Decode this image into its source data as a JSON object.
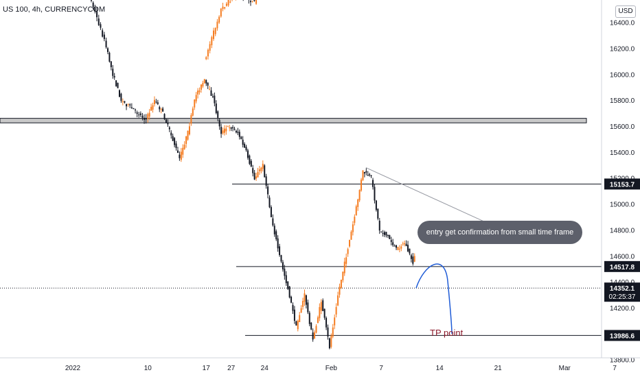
{
  "header": {
    "symbol": "US 100, 4h, CURRENCYCOM",
    "currency": "USD"
  },
  "chart_data": {
    "type": "candlestick",
    "title": "US 100, 4h, CURRENCYCOM",
    "currency": "USD",
    "ylim": [
      13700,
      16700
    ],
    "y_ticks": [
      "16400.0",
      "16200.0",
      "16000.0",
      "15800.0",
      "15600.0",
      "15400.0",
      "15200.0",
      "15000.0",
      "14800.0",
      "14600.0",
      "14400.0",
      "14200.0",
      "13800.0"
    ],
    "x_ticks": [
      "27",
      "2022",
      "10",
      "17",
      "24",
      "Feb",
      "7",
      "14",
      "21",
      "Mar",
      "7"
    ],
    "series": [
      {
        "name": "price",
        "points": [
          [
            "Dec 24",
            16100
          ],
          [
            "Dec 26",
            16500
          ],
          [
            "Dec 28",
            16630
          ],
          [
            "Dec 30",
            16550
          ],
          [
            "Jan 1",
            16700
          ],
          [
            "Jan 3",
            16650
          ],
          [
            "Jan 5",
            16260
          ],
          [
            "Jan 6",
            16000
          ],
          [
            "Jan 7",
            15800
          ],
          [
            "Jan 10",
            15650
          ],
          [
            "Jan 11",
            15800
          ],
          [
            "Jan 12",
            15700
          ],
          [
            "Jan 13",
            15530
          ],
          [
            "Jan 14",
            15350
          ],
          [
            "Jan 15",
            15550
          ],
          [
            "Jan 16",
            15850
          ],
          [
            "Jan 17",
            15950
          ],
          [
            "Jan 18",
            15820
          ],
          [
            "Jan 19",
            15550
          ],
          [
            "Jan 20",
            15600
          ],
          [
            "Jan 21",
            15550
          ],
          [
            "Jan 22",
            15400
          ],
          [
            "Jan 23",
            15200
          ],
          [
            "Jan 24",
            15300
          ],
          [
            "Jan 25",
            14900
          ],
          [
            "Jan 26",
            14600
          ],
          [
            "Jan 27",
            14350
          ],
          [
            "Jan 28",
            14050
          ],
          [
            "Jan 29",
            14300
          ],
          [
            "Jan 30",
            13950
          ],
          [
            "Jan 31",
            14250
          ],
          [
            "Feb 1",
            13900
          ],
          [
            "Feb 2",
            14300
          ],
          [
            "Feb 3",
            14600
          ],
          [
            "Feb 4",
            14900
          ],
          [
            "Feb 5",
            15250
          ],
          [
            "Feb 6",
            15200
          ],
          [
            "Feb 7",
            14800
          ],
          [
            "Feb 8",
            14750
          ],
          [
            "Feb 9",
            14650
          ],
          [
            "Feb 10",
            14700
          ],
          [
            "Feb 11",
            14550
          ],
          [
            "Feb 12",
            14750
          ],
          [
            "Feb 13",
            15050
          ],
          [
            "Feb 14",
            14700
          ],
          [
            "Feb 15",
            14350
          ]
        ]
      }
    ],
    "price_labels": [
      {
        "label": "15153.7",
        "value": 15153.7,
        "style": "black"
      },
      {
        "label": "14517.8",
        "value": 14517.8,
        "style": "black"
      },
      {
        "label": "14352.1",
        "value": 14352.1,
        "style": "black",
        "countdown": "02:25:37"
      },
      {
        "label": "13986.6",
        "value": 13986.6,
        "style": "black"
      }
    ],
    "zone": {
      "from": 15625,
      "to": 15660
    },
    "trendline": {
      "from": 15280,
      "to": 14780
    },
    "annotations": [
      {
        "text": "entry get confirmation from small time frame"
      },
      {
        "text": "TP point"
      }
    ]
  }
}
